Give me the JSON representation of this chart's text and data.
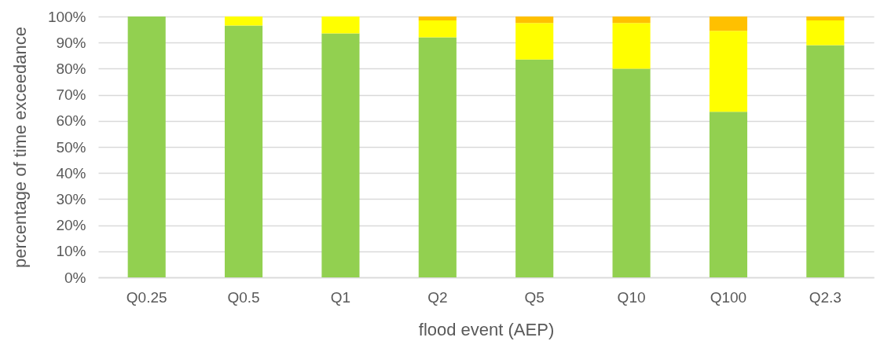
{
  "chart_data": {
    "type": "bar",
    "stacked": true,
    "xlabel": "flood event (AEP)",
    "ylabel": "percentage of time exceedance",
    "categories": [
      "Q0.25",
      "Q0.5",
      "Q1",
      "Q2",
      "Q5",
      "Q10",
      "Q100",
      "Q2.3"
    ],
    "series": [
      {
        "color": "#92d050",
        "values": [
          100,
          96.5,
          93.5,
          92,
          83.5,
          80,
          63.5,
          89
        ]
      },
      {
        "color": "#ffff00",
        "values": [
          null,
          3.5,
          6.5,
          6.5,
          14,
          17.5,
          31,
          9.5
        ]
      },
      {
        "color": "#ffc000",
        "values": [
          null,
          null,
          null,
          1.5,
          2.5,
          2.5,
          5.5,
          1.5
        ]
      }
    ],
    "ylim": [
      0,
      100
    ],
    "yticks": [
      {
        "value": 0,
        "label": "0%"
      },
      {
        "value": 10,
        "label": "10%"
      },
      {
        "value": 20,
        "label": "20%"
      },
      {
        "value": 30,
        "label": "30%"
      },
      {
        "value": 40,
        "label": "40%"
      },
      {
        "value": 50,
        "label": "50%"
      },
      {
        "value": 60,
        "label": "60%"
      },
      {
        "value": 70,
        "label": "70%"
      },
      {
        "value": 80,
        "label": "80%"
      },
      {
        "value": 90,
        "label": "90%"
      },
      {
        "value": 100,
        "label": "100%"
      }
    ],
    "grid": "y"
  }
}
